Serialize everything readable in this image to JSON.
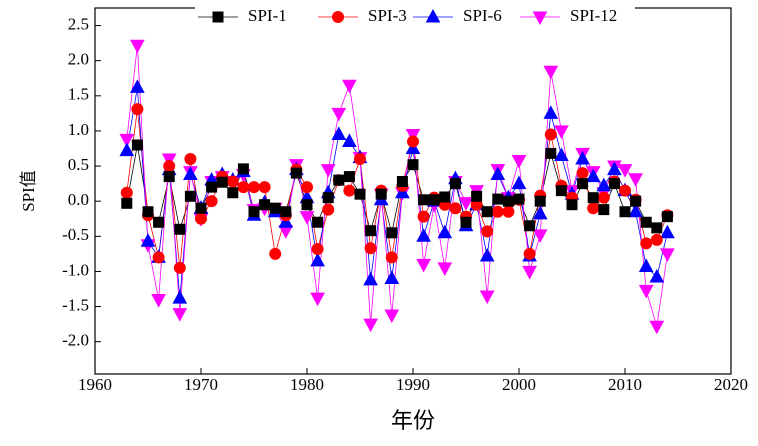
{
  "chart_data": {
    "type": "line",
    "xlabel": "年份",
    "ylabel": "SPI值",
    "x": [
      1963,
      1964,
      1965,
      1966,
      1967,
      1968,
      1969,
      1970,
      1971,
      1972,
      1973,
      1974,
      1975,
      1976,
      1977,
      1978,
      1979,
      1980,
      1981,
      1982,
      1983,
      1984,
      1985,
      1986,
      1987,
      1988,
      1989,
      1990,
      1991,
      1992,
      1993,
      1994,
      1995,
      1996,
      1997,
      1998,
      1999,
      2000,
      2001,
      2002,
      2003,
      2004,
      2005,
      2006,
      2007,
      2008,
      2009,
      2010,
      2011,
      2012,
      2013,
      2014
    ],
    "series": [
      {
        "name": "SPI-1",
        "color": "#000000",
        "marker": "square",
        "values": [
          -0.03,
          0.8,
          -0.15,
          -0.3,
          0.35,
          -0.4,
          0.07,
          -0.1,
          0.2,
          0.27,
          0.12,
          0.46,
          -0.15,
          -0.05,
          -0.1,
          -0.15,
          0.4,
          -0.05,
          -0.3,
          0.05,
          0.3,
          0.35,
          0.1,
          -0.42,
          0.1,
          -0.45,
          0.28,
          0.52,
          0.02,
          0.02,
          0.06,
          0.25,
          -0.3,
          0.07,
          -0.15,
          0.03,
          0.0,
          0.03,
          -0.35,
          0.0,
          0.68,
          0.15,
          -0.05,
          0.25,
          0.05,
          -0.12,
          0.25,
          -0.15,
          0.0,
          -0.3,
          -0.38,
          -0.22
        ]
      },
      {
        "name": "SPI-3",
        "color": "#ff0000",
        "marker": "circle",
        "values": [
          0.12,
          1.31,
          -0.2,
          -0.8,
          0.5,
          -0.95,
          0.6,
          -0.25,
          0.0,
          0.35,
          0.28,
          0.2,
          0.2,
          0.2,
          -0.75,
          -0.2,
          0.45,
          0.2,
          -0.68,
          -0.12,
          0.3,
          0.15,
          0.6,
          -0.67,
          0.15,
          -0.8,
          0.22,
          0.85,
          -0.22,
          0.05,
          -0.05,
          -0.1,
          -0.22,
          -0.05,
          -0.43,
          -0.15,
          -0.15,
          0.02,
          -0.75,
          0.08,
          0.95,
          0.22,
          0.05,
          0.4,
          -0.1,
          0.05,
          0.28,
          0.15,
          0.02,
          -0.6,
          -0.55,
          -0.2
        ]
      },
      {
        "name": "SPI-6",
        "color": "#0000ff",
        "marker": "triangle",
        "values": [
          0.72,
          1.62,
          -0.57,
          -0.8,
          0.45,
          -1.38,
          0.38,
          -0.1,
          0.3,
          0.38,
          0.3,
          0.42,
          -0.2,
          -0.02,
          -0.15,
          -0.3,
          0.45,
          0.05,
          -0.85,
          0.12,
          0.95,
          0.85,
          0.62,
          -1.12,
          0.02,
          -1.1,
          0.12,
          0.75,
          -0.5,
          0.0,
          -0.45,
          0.32,
          -0.35,
          -0.05,
          -0.78,
          0.38,
          0.05,
          0.25,
          -0.78,
          -0.18,
          1.25,
          0.65,
          0.1,
          0.6,
          0.35,
          0.22,
          0.45,
          0.15,
          -0.15,
          -0.93,
          -1.08,
          -0.45
        ]
      },
      {
        "name": "SPI-12",
        "color": "#ff00ff",
        "marker": "triangle-down",
        "values": [
          0.88,
          2.22,
          -0.62,
          -1.4,
          0.6,
          -1.6,
          0.42,
          -0.25,
          0.28,
          0.35,
          0.28,
          0.38,
          -0.12,
          -0.1,
          -0.1,
          -0.42,
          0.52,
          -0.22,
          -1.38,
          0.45,
          1.25,
          1.65,
          0.62,
          -1.75,
          0.1,
          -1.62,
          0.12,
          0.95,
          -0.9,
          -0.05,
          -0.95,
          0.28,
          -0.02,
          0.15,
          -1.35,
          0.45,
          0.05,
          0.58,
          -1.0,
          -0.48,
          1.85,
          1.0,
          0.15,
          0.68,
          0.42,
          0.12,
          0.5,
          0.45,
          0.32,
          -1.27,
          -1.78,
          -0.75
        ]
      }
    ],
    "xlim": [
      1960,
      2020
    ],
    "xticks": [
      1960,
      1970,
      1980,
      1990,
      2000,
      2010,
      2020
    ],
    "ylim": [
      -2.46,
      2.75
    ],
    "yticks": [
      {
        "value": -2,
        "label": "-2.0"
      },
      -1.5,
      {
        "value": -1,
        "label": "-1.0"
      },
      -0.5,
      {
        "value": 0,
        "label": "0.0"
      },
      0.5,
      {
        "value": 1,
        "label": "1.0"
      },
      1.5,
      {
        "value": 2,
        "label": "2.0"
      },
      2.5
    ],
    "legend": "top"
  }
}
